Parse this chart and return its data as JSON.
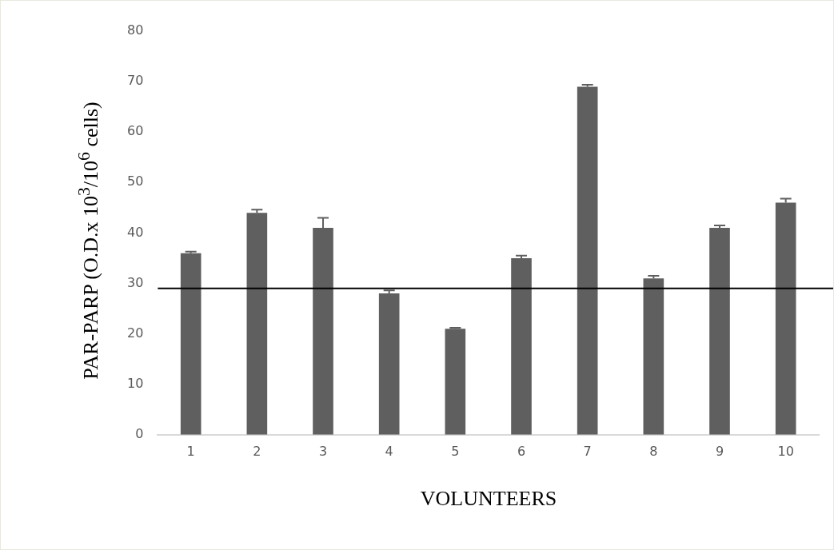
{
  "chart_data": {
    "type": "bar",
    "xlabel": "VOLUNTEERS",
    "ylabel": "PAR-PARP (O.D.x 10$^{3}$/10$^{6}$ cells)",
    "categories": [
      "1",
      "2",
      "3",
      "4",
      "5",
      "6",
      "7",
      "8",
      "9",
      "10"
    ],
    "values": [
      36,
      44,
      41,
      28,
      21,
      35,
      69,
      31,
      41,
      46
    ],
    "errors": [
      [
        36,
        36.3
      ],
      [
        44,
        44.6
      ],
      [
        41,
        43
      ],
      [
        28,
        28.6
      ],
      [
        21,
        21.2
      ],
      [
        35,
        35.5
      ],
      [
        69,
        69.4
      ],
      [
        31,
        31.5
      ],
      [
        41,
        41.5
      ],
      [
        46,
        46.8
      ]
    ],
    "color": "#5f5f5f",
    "ylim": [
      0,
      80
    ],
    "yticks": [
      0,
      10,
      20,
      30,
      40,
      50,
      60,
      70,
      80
    ],
    "grid": false,
    "legend": false,
    "ref_lines": [
      {
        "axis": "y",
        "value": 29,
        "color": "#000000"
      }
    ]
  }
}
